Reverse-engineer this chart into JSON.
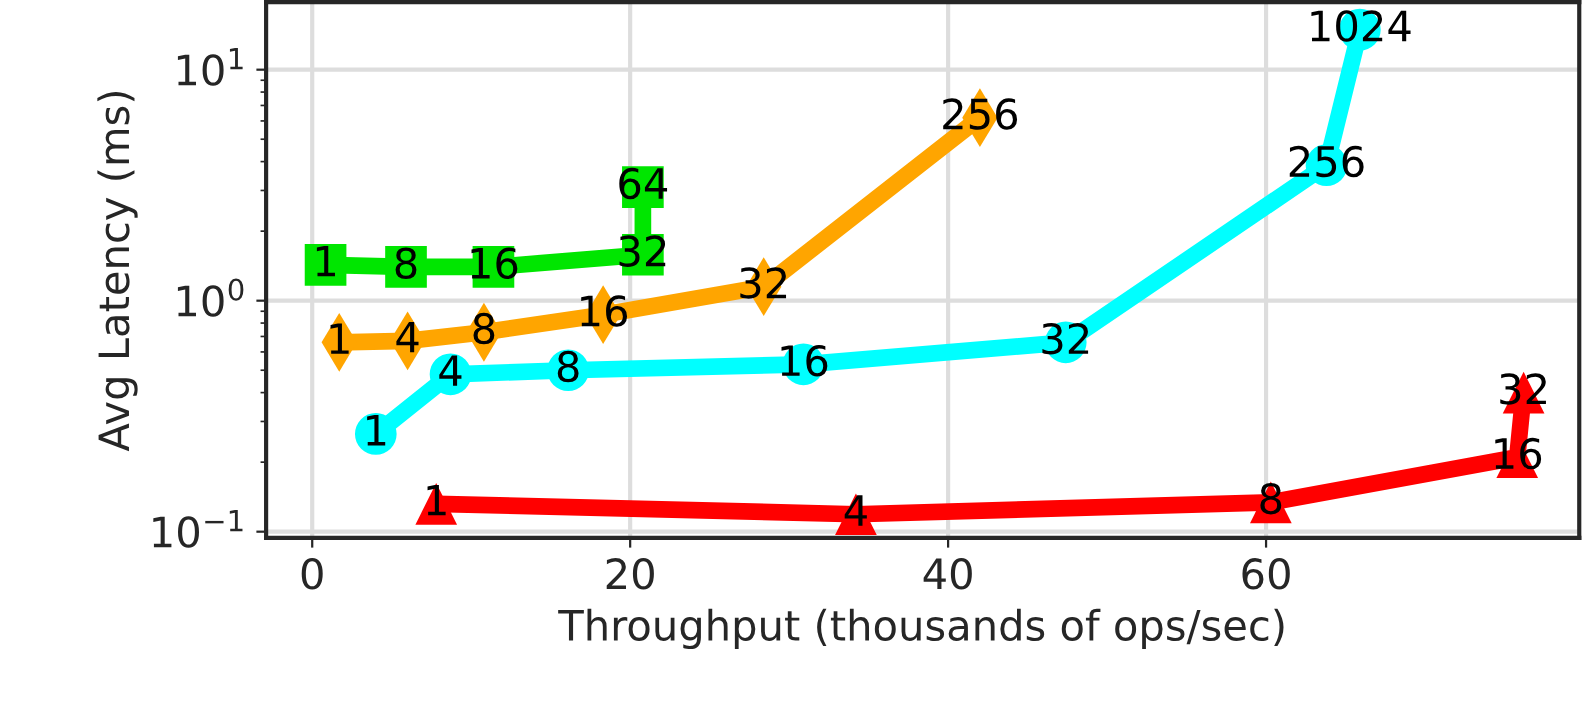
{
  "chart_data": {
    "type": "line",
    "xlabel": "Throughput (thousands of ops/sec)",
    "ylabel": "Avg Latency (ms)",
    "log": "y",
    "grid": true,
    "legend": false,
    "line_style": "solid",
    "xlim": [
      -2.9,
      79.7
    ],
    "ylim": [
      0.094,
      19.6
    ],
    "xticks": [
      0,
      20,
      40,
      60
    ],
    "yticks": [
      {
        "value": 0.1,
        "label": "10$^{−1}$"
      },
      {
        "value": 1,
        "label": "10$^{0}$"
      },
      {
        "value": 10,
        "label": "10$^{1}$"
      }
    ],
    "series": [
      {
        "color": "#00e600",
        "marker": "square",
        "x": [
          0.84,
          5.9,
          11.4,
          20.8,
          20.8
        ],
        "values": [
          1.43,
          1.4,
          1.4,
          1.58,
          3.1
        ]
      },
      {
        "color": "#ffa500",
        "marker": "diamond",
        "x": [
          1.7,
          6.0,
          10.8,
          18.3,
          28.4,
          42.0
        ],
        "values": [
          0.66,
          0.67,
          0.73,
          0.87,
          1.15,
          6.2
        ]
      },
      {
        "color": "#00ffff",
        "marker": "circle",
        "x": [
          4.0,
          8.7,
          16.1,
          30.9,
          47.4,
          63.8,
          65.9
        ],
        "values": [
          0.265,
          0.48,
          0.5,
          0.53,
          0.66,
          3.86,
          14.9
        ]
      },
      {
        "color": "#ff0000",
        "marker": "triangle",
        "x": [
          7.8,
          34.2,
          60.3,
          75.8,
          76.2
        ],
        "values": [
          0.132,
          0.119,
          0.134,
          0.21,
          0.4
        ]
      }
    ],
    "annotations": [
      {
        "text": "1",
        "x": 0.84,
        "y": 1.43
      },
      {
        "text": "8",
        "x": 5.9,
        "y": 1.4
      },
      {
        "text": "16",
        "x": 11.4,
        "y": 1.4
      },
      {
        "text": "32",
        "x": 20.8,
        "y": 1.58
      },
      {
        "text": "64",
        "x": 20.8,
        "y": 3.1
      },
      {
        "text": "1",
        "x": 1.7,
        "y": 0.66
      },
      {
        "text": "4",
        "x": 6.0,
        "y": 0.67
      },
      {
        "text": "8",
        "x": 10.8,
        "y": 0.73
      },
      {
        "text": "16",
        "x": 18.3,
        "y": 0.87
      },
      {
        "text": "32",
        "x": 28.4,
        "y": 1.15
      },
      {
        "text": "256",
        "x": 42.0,
        "y": 6.2
      },
      {
        "text": "1",
        "x": 4.0,
        "y": 0.265
      },
      {
        "text": "4",
        "x": 8.7,
        "y": 0.48
      },
      {
        "text": "8",
        "x": 16.1,
        "y": 0.5
      },
      {
        "text": "16",
        "x": 30.9,
        "y": 0.53
      },
      {
        "text": "32",
        "x": 47.4,
        "y": 0.66
      },
      {
        "text": "256",
        "x": 63.8,
        "y": 3.86
      },
      {
        "text": "1024",
        "x": 65.9,
        "y": 14.9
      },
      {
        "text": "1",
        "x": 7.8,
        "y": 0.132
      },
      {
        "text": "4",
        "x": 34.2,
        "y": 0.119
      },
      {
        "text": "8",
        "x": 60.3,
        "y": 0.134
      },
      {
        "text": "16",
        "x": 75.8,
        "y": 0.21
      },
      {
        "text": "32",
        "x": 76.2,
        "y": 0.4
      }
    ]
  }
}
